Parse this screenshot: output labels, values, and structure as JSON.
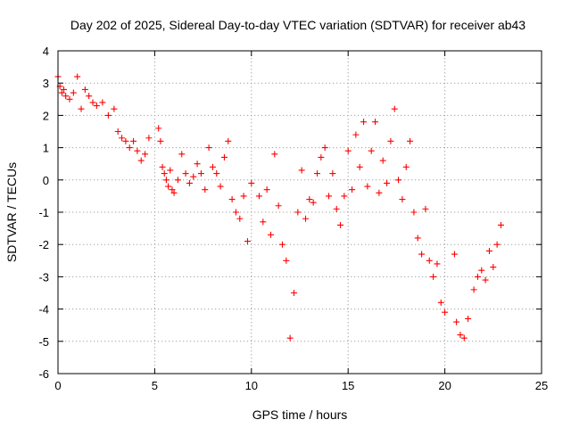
{
  "chart_data": {
    "type": "scatter",
    "title": "Day 202 of 2025, Sidereal Day-to-day VTEC variation (SDTVAR) for receiver ab43",
    "xlabel": "GPS time / hours",
    "ylabel": "SDTVAR / TECUs",
    "xlim": [
      0,
      25
    ],
    "ylim": [
      -6,
      4
    ],
    "x_ticks": [
      0,
      5,
      10,
      15,
      20,
      25
    ],
    "y_ticks": [
      -6,
      -5,
      -4,
      -3,
      -2,
      -1,
      0,
      1,
      2,
      3,
      4
    ],
    "grid": true,
    "marker": "plus",
    "color": "#ff0000",
    "series": [
      {
        "name": "SDTVAR",
        "x": [
          0.0,
          0.1,
          0.2,
          0.3,
          0.4,
          0.6,
          0.8,
          1.0,
          1.2,
          1.4,
          1.6,
          1.8,
          2.0,
          2.3,
          2.6,
          2.9,
          3.1,
          3.3,
          3.5,
          3.7,
          3.9,
          4.1,
          4.3,
          4.5,
          4.7,
          5.2,
          5.3,
          5.4,
          5.5,
          5.6,
          5.7,
          5.8,
          5.9,
          6.0,
          6.2,
          6.4,
          6.6,
          6.8,
          7.0,
          7.2,
          7.4,
          7.6,
          7.8,
          8.0,
          8.2,
          8.4,
          8.6,
          8.8,
          9.0,
          9.2,
          9.4,
          9.6,
          9.8,
          10.0,
          10.4,
          10.6,
          10.8,
          11.0,
          11.2,
          11.4,
          11.6,
          11.8,
          12.0,
          12.2,
          12.4,
          12.6,
          12.8,
          13.0,
          13.2,
          13.4,
          13.6,
          13.8,
          14.0,
          14.2,
          14.4,
          14.6,
          14.8,
          15.0,
          15.2,
          15.4,
          15.6,
          15.8,
          16.0,
          16.2,
          16.4,
          16.6,
          16.8,
          17.0,
          17.2,
          17.4,
          17.6,
          17.8,
          18.0,
          18.2,
          18.4,
          18.6,
          18.8,
          19.0,
          19.2,
          19.4,
          19.6,
          19.8,
          20.0,
          20.5,
          20.6,
          20.8,
          21.0,
          21.2,
          21.5,
          21.7,
          21.9,
          22.1,
          22.3,
          22.5,
          22.7,
          22.9
        ],
        "y": [
          3.2,
          2.9,
          2.7,
          2.8,
          2.6,
          2.5,
          2.7,
          3.2,
          2.2,
          2.8,
          2.6,
          2.4,
          2.3,
          2.4,
          2.0,
          2.2,
          1.5,
          1.3,
          1.2,
          1.0,
          1.2,
          0.9,
          0.6,
          0.8,
          1.3,
          1.6,
          1.2,
          0.4,
          0.2,
          0.0,
          -0.2,
          0.3,
          -0.3,
          -0.4,
          0.0,
          0.8,
          0.2,
          -0.1,
          0.1,
          0.5,
          0.2,
          -0.3,
          1.0,
          0.4,
          0.2,
          -0.2,
          0.7,
          1.2,
          -0.6,
          -1.0,
          -1.2,
          -0.5,
          -1.9,
          -0.1,
          -0.5,
          -1.3,
          -0.3,
          -1.7,
          0.8,
          -0.8,
          -2.0,
          -2.5,
          -4.9,
          -3.5,
          -1.0,
          0.3,
          -1.2,
          -0.6,
          -0.7,
          0.2,
          0.7,
          1.0,
          -0.5,
          0.2,
          -0.9,
          -1.4,
          -0.5,
          0.9,
          -0.3,
          1.4,
          0.4,
          1.8,
          -0.2,
          0.9,
          1.8,
          -0.4,
          0.6,
          -0.1,
          1.2,
          2.2,
          0.0,
          -0.6,
          0.4,
          1.2,
          -1.0,
          -1.8,
          -2.3,
          -0.9,
          -2.5,
          -3.0,
          -2.6,
          -3.8,
          -4.1,
          -2.3,
          -4.4,
          -4.8,
          -4.9,
          -4.3,
          -3.4,
          -3.0,
          -2.8,
          -3.1,
          -2.2,
          -2.7,
          -2.0,
          -1.4
        ]
      }
    ]
  }
}
